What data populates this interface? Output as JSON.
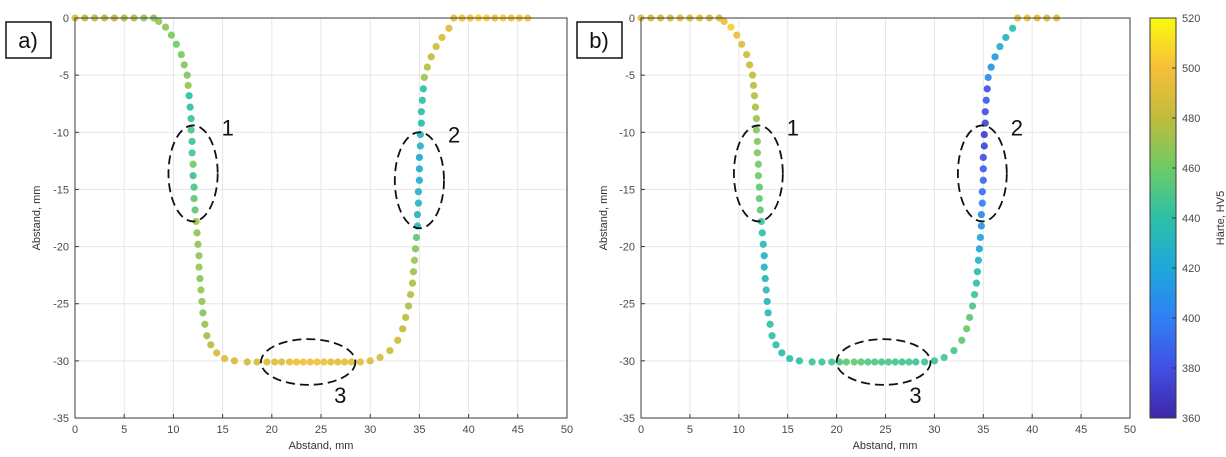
{
  "chart_data": [
    {
      "type": "scatter",
      "panel_label": "a)",
      "xlabel": "Abstand, mm",
      "ylabel": "Abstand, mm",
      "xlim": [
        0,
        50
      ],
      "ylim": [
        -35,
        0
      ],
      "xticks": [
        "0",
        "5",
        "10",
        "15",
        "20",
        "25",
        "30",
        "35",
        "40",
        "45",
        "50"
      ],
      "yticks": [
        "0",
        "-5",
        "-10",
        "-15",
        "-20",
        "-25",
        "-30",
        "-35"
      ],
      "grid": true,
      "annotations": [
        {
          "label": "1",
          "cx": 12,
          "cy": -13.6,
          "rx": 2.5,
          "ry": 4.2
        },
        {
          "label": "2",
          "cx": 35,
          "cy": -14.2,
          "rx": 2.5,
          "ry": 4.2
        },
        {
          "label": "3",
          "cx": 23.7,
          "cy": -30.1,
          "rx": 4.8,
          "ry": 2.0
        }
      ],
      "series": [
        {
          "segment": "top-left",
          "x_range": [
            0,
            8
          ],
          "y": 0,
          "hardness": [
            490,
            480,
            480,
            482,
            480,
            475,
            478,
            470,
            465
          ]
        },
        {
          "segment": "bend-left",
          "points": [
            [
              8.5,
              -0.3,
              470
            ],
            [
              9.2,
              -0.8,
              468
            ],
            [
              9.8,
              -1.5,
              462
            ],
            [
              10.3,
              -2.3,
              460
            ],
            [
              10.8,
              -3.2,
              462
            ],
            [
              11.1,
              -4.1,
              465
            ],
            [
              11.4,
              -5.0,
              465
            ],
            [
              11.5,
              -5.9,
              470
            ]
          ]
        },
        {
          "segment": "wall-left",
          "points": [
            [
              11.6,
              -6.8,
              440
            ],
            [
              11.7,
              -7.8,
              440
            ],
            [
              11.8,
              -8.8,
              445
            ],
            [
              11.8,
              -9.8,
              450
            ],
            [
              11.9,
              -10.8,
              445
            ],
            [
              11.9,
              -11.8,
              450
            ],
            [
              12.0,
              -12.8,
              460
            ],
            [
              12.0,
              -13.8,
              445
            ],
            [
              12.1,
              -14.8,
              450
            ],
            [
              12.1,
              -15.8,
              455
            ],
            [
              12.2,
              -16.8,
              455
            ],
            [
              12.3,
              -17.8,
              470
            ],
            [
              12.4,
              -18.8,
              468
            ],
            [
              12.5,
              -19.8,
              468
            ],
            [
              12.6,
              -20.8,
              468
            ],
            [
              12.6,
              -21.8,
              470
            ],
            [
              12.7,
              -22.8,
              465
            ],
            [
              12.8,
              -23.8,
              470
            ],
            [
              12.9,
              -24.8,
              468
            ],
            [
              13.0,
              -25.8,
              465
            ],
            [
              13.2,
              -26.8,
              470
            ],
            [
              13.4,
              -27.8,
              472
            ],
            [
              13.8,
              -28.6,
              478
            ]
          ]
        },
        {
          "segment": "bottom",
          "points": [
            [
              14.4,
              -29.3,
              488
            ],
            [
              15.2,
              -29.8,
              490
            ],
            [
              16.2,
              -30.0,
              488
            ],
            [
              17.5,
              -30.1,
              485
            ],
            [
              18.5,
              -30.1,
              488
            ],
            [
              19.5,
              -30.1,
              490
            ],
            [
              20.3,
              -30.1,
              493
            ],
            [
              21.0,
              -30.1,
              492
            ],
            [
              21.8,
              -30.1,
              494
            ],
            [
              22.5,
              -30.1,
              497
            ],
            [
              23.2,
              -30.1,
              500
            ],
            [
              23.9,
              -30.1,
              497
            ],
            [
              24.6,
              -30.1,
              500
            ],
            [
              25.3,
              -30.1,
              498
            ],
            [
              26.0,
              -30.1,
              494
            ],
            [
              26.7,
              -30.1,
              493
            ],
            [
              27.4,
              -30.1,
              494
            ],
            [
              28.1,
              -30.1,
              490
            ],
            [
              29.0,
              -30.1,
              492
            ],
            [
              30.0,
              -30.0,
              490
            ]
          ]
        },
        {
          "segment": "bend-right-bottom",
          "points": [
            [
              31.0,
              -29.7,
              488
            ],
            [
              32.0,
              -29.1,
              485
            ],
            [
              32.8,
              -28.2,
              485
            ],
            [
              33.3,
              -27.2,
              482
            ],
            [
              33.6,
              -26.2,
              480
            ],
            [
              33.9,
              -25.2,
              475
            ],
            [
              34.1,
              -24.2,
              478
            ],
            [
              34.3,
              -23.2,
              475
            ],
            [
              34.4,
              -22.2,
              470
            ],
            [
              34.5,
              -21.2,
              470
            ],
            [
              34.6,
              -20.2,
              465
            ],
            [
              34.7,
              -19.2,
              455
            ]
          ]
        },
        {
          "segment": "wall-right",
          "points": [
            [
              34.8,
              -18.2,
              435
            ],
            [
              34.8,
              -17.2,
              430
            ],
            [
              34.9,
              -16.2,
              430
            ],
            [
              34.9,
              -15.2,
              428
            ],
            [
              35.0,
              -14.2,
              425
            ],
            [
              35.0,
              -13.2,
              425
            ],
            [
              35.0,
              -12.2,
              422
            ],
            [
              35.1,
              -11.2,
              430
            ],
            [
              35.1,
              -10.2,
              430
            ],
            [
              35.2,
              -9.2,
              438
            ],
            [
              35.2,
              -8.2,
              440
            ],
            [
              35.3,
              -7.2,
              440
            ],
            [
              35.4,
              -6.2,
              440
            ]
          ]
        },
        {
          "segment": "bend-right-top",
          "points": [
            [
              35.5,
              -5.2,
              470
            ],
            [
              35.8,
              -4.3,
              478
            ],
            [
              36.2,
              -3.4,
              480
            ],
            [
              36.7,
              -2.5,
              485
            ],
            [
              37.3,
              -1.7,
              488
            ],
            [
              38.0,
              -0.9,
              490
            ]
          ]
        },
        {
          "segment": "top-right",
          "x_range": [
            38.5,
            46
          ],
          "y": 0,
          "hardness": [
            495,
            500,
            500,
            505,
            505,
            500,
            505,
            500,
            500,
            500
          ]
        }
      ]
    },
    {
      "type": "scatter",
      "panel_label": "b)",
      "xlabel": "Abstand, mm",
      "ylabel": "Abstand, mm",
      "xlim": [
        0,
        50
      ],
      "ylim": [
        -35,
        0
      ],
      "xticks": [
        "0",
        "5",
        "10",
        "15",
        "20",
        "25",
        "30",
        "35",
        "40",
        "45",
        "50"
      ],
      "yticks": [
        "0",
        "-5",
        "-10",
        "-15",
        "-20",
        "-25",
        "-30",
        "-35"
      ],
      "grid": true,
      "annotations": [
        {
          "label": "1",
          "cx": 12,
          "cy": -13.6,
          "rx": 2.5,
          "ry": 4.2
        },
        {
          "label": "2",
          "cx": 34.9,
          "cy": -13.6,
          "rx": 2.5,
          "ry": 4.2
        },
        {
          "label": "3",
          "cx": 24.8,
          "cy": -30.1,
          "rx": 4.8,
          "ry": 2.0
        }
      ],
      "series": [
        {
          "segment": "top-left",
          "x_range": [
            0,
            8
          ],
          "y": 0,
          "hardness": [
            490,
            488,
            485,
            488,
            490,
            488,
            492,
            485,
            488
          ]
        },
        {
          "segment": "bend-left",
          "points": [
            [
              8.5,
              -0.3,
              495
            ],
            [
              9.2,
              -0.8,
              505
            ],
            [
              9.8,
              -1.5,
              495
            ],
            [
              10.3,
              -2.3,
              490
            ],
            [
              10.8,
              -3.2,
              485
            ],
            [
              11.1,
              -4.1,
              485
            ],
            [
              11.4,
              -5.0,
              482
            ],
            [
              11.5,
              -5.9,
              480
            ]
          ]
        },
        {
          "segment": "wall-left",
          "points": [
            [
              11.6,
              -6.8,
              478
            ],
            [
              11.7,
              -7.8,
              475
            ],
            [
              11.8,
              -8.8,
              470
            ],
            [
              11.8,
              -9.8,
              465
            ],
            [
              11.9,
              -10.8,
              465
            ],
            [
              11.9,
              -11.8,
              465
            ],
            [
              12.0,
              -12.8,
              460
            ],
            [
              12.0,
              -13.8,
              460
            ],
            [
              12.1,
              -14.8,
              455
            ],
            [
              12.1,
              -15.8,
              458
            ],
            [
              12.2,
              -16.8,
              455
            ],
            [
              12.3,
              -17.8,
              445
            ],
            [
              12.4,
              -18.8,
              440
            ],
            [
              12.5,
              -19.8,
              435
            ],
            [
              12.6,
              -20.8,
              430
            ],
            [
              12.6,
              -21.8,
              430
            ],
            [
              12.7,
              -22.8,
              430
            ],
            [
              12.8,
              -23.8,
              435
            ],
            [
              12.9,
              -24.8,
              430
            ],
            [
              13.0,
              -25.8,
              435
            ],
            [
              13.2,
              -26.8,
              440
            ],
            [
              13.4,
              -27.8,
              440
            ],
            [
              13.8,
              -28.6,
              440
            ]
          ]
        },
        {
          "segment": "bottom",
          "points": [
            [
              14.4,
              -29.3,
              440
            ],
            [
              15.2,
              -29.8,
              438
            ],
            [
              16.2,
              -30.0,
              440
            ],
            [
              17.5,
              -30.1,
              445
            ],
            [
              18.5,
              -30.1,
              445
            ],
            [
              19.5,
              -30.1,
              448
            ],
            [
              20.3,
              -30.1,
              450
            ],
            [
              21.0,
              -30.1,
              455
            ],
            [
              21.8,
              -30.1,
              458
            ],
            [
              22.5,
              -30.1,
              455
            ],
            [
              23.2,
              -30.1,
              452
            ],
            [
              23.9,
              -30.1,
              450
            ],
            [
              24.6,
              -30.1,
              448
            ],
            [
              25.3,
              -30.1,
              450
            ],
            [
              26.0,
              -30.1,
              448
            ],
            [
              26.7,
              -30.1,
              445
            ],
            [
              27.4,
              -30.1,
              448
            ],
            [
              28.1,
              -30.1,
              445
            ],
            [
              29.0,
              -30.1,
              445
            ],
            [
              30.0,
              -30.0,
              445
            ]
          ]
        },
        {
          "segment": "bend-right-bottom",
          "points": [
            [
              31.0,
              -29.7,
              448
            ],
            [
              32.0,
              -29.1,
              450
            ],
            [
              32.8,
              -28.2,
              455
            ],
            [
              33.3,
              -27.2,
              458
            ],
            [
              33.6,
              -26.2,
              455
            ],
            [
              33.9,
              -25.2,
              450
            ],
            [
              34.1,
              -24.2,
              445
            ],
            [
              34.3,
              -23.2,
              440
            ],
            [
              34.4,
              -22.2,
              435
            ],
            [
              34.5,
              -21.2,
              430
            ],
            [
              34.6,
              -20.2,
              420
            ],
            [
              34.7,
              -19.2,
              418
            ]
          ]
        },
        {
          "segment": "wall-right",
          "points": [
            [
              34.8,
              -18.2,
              410
            ],
            [
              34.8,
              -17.2,
              405
            ],
            [
              34.9,
              -16.2,
              400
            ],
            [
              34.9,
              -15.2,
              395
            ],
            [
              35.0,
              -14.2,
              390
            ],
            [
              35.0,
              -13.2,
              385
            ],
            [
              35.0,
              -12.2,
              380
            ],
            [
              35.1,
              -11.2,
              375
            ],
            [
              35.1,
              -10.2,
              372
            ],
            [
              35.2,
              -9.2,
              375
            ],
            [
              35.2,
              -8.2,
              380
            ],
            [
              35.3,
              -7.2,
              385
            ],
            [
              35.4,
              -6.2,
              380
            ]
          ]
        },
        {
          "segment": "bend-right-top",
          "points": [
            [
              35.5,
              -5.2,
              405
            ],
            [
              35.8,
              -4.3,
              410
            ],
            [
              36.2,
              -3.4,
              415
            ],
            [
              36.7,
              -2.5,
              425
            ],
            [
              37.3,
              -1.7,
              430
            ],
            [
              38.0,
              -0.9,
              440
            ]
          ]
        },
        {
          "segment": "top-right",
          "x_range": [
            38.5,
            42.5
          ],
          "y": 0,
          "hardness": [
            495,
            498,
            495,
            490,
            490
          ]
        }
      ]
    }
  ],
  "colorbar": {
    "label": "Härte, HV5",
    "min": 360,
    "max": 520,
    "ticks": [
      "360",
      "380",
      "400",
      "420",
      "440",
      "460",
      "480",
      "500",
      "520"
    ],
    "colormap": [
      "#3e26a8",
      "#4250e5",
      "#2f80f5",
      "#1ea8d9",
      "#2cc0a8",
      "#6ecb65",
      "#c1bc3c",
      "#f6bf3a",
      "#f9fb0e"
    ]
  }
}
